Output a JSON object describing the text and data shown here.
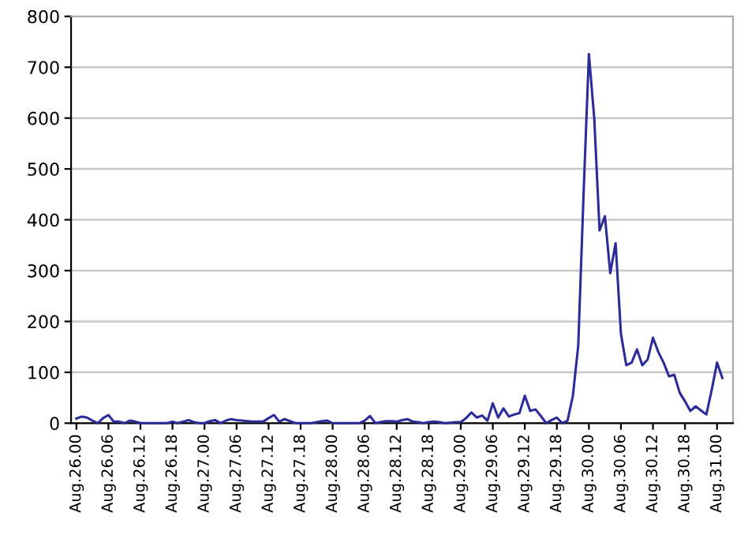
{
  "chart_data": {
    "type": "line",
    "grid": "y",
    "marker": "none",
    "line_style": "solid",
    "ylim": [
      0,
      800
    ],
    "yticks": [
      0,
      100,
      200,
      300,
      400,
      500,
      600,
      700,
      800
    ],
    "categories": [
      "Aug.26.00",
      null,
      null,
      null,
      null,
      null,
      "Aug.26.06",
      null,
      null,
      null,
      null,
      null,
      "Aug.26.12",
      null,
      null,
      null,
      null,
      null,
      "Aug.26.18",
      null,
      null,
      null,
      null,
      null,
      "Aug.27.00",
      null,
      null,
      null,
      null,
      null,
      "Aug.27.06",
      null,
      null,
      null,
      null,
      null,
      "Aug.27.12",
      null,
      null,
      null,
      null,
      null,
      "Aug.27.18",
      null,
      null,
      null,
      null,
      null,
      "Aug.28.00",
      null,
      null,
      null,
      null,
      null,
      "Aug.28.06",
      null,
      null,
      null,
      null,
      null,
      "Aug.28.12",
      null,
      null,
      null,
      null,
      null,
      "Aug.28.18",
      null,
      null,
      null,
      null,
      null,
      "Aug.29.00",
      null,
      null,
      null,
      null,
      null,
      "Aug.29.06",
      null,
      null,
      null,
      null,
      null,
      "Aug.29.12",
      null,
      null,
      null,
      null,
      null,
      "Aug.29.18",
      null,
      null,
      null,
      null,
      null,
      "Aug.30.00",
      null,
      null,
      null,
      null,
      null,
      "Aug.30.06",
      null,
      null,
      null,
      null,
      null,
      "Aug.30.12",
      null,
      null,
      null,
      null,
      null,
      "Aug.30.18",
      null,
      null,
      null,
      null,
      null,
      "Aug.31.00",
      null
    ],
    "series": [
      {
        "color": "#2b2b9a",
        "values": [
          9,
          13,
          11,
          5,
          0,
          10,
          16,
          3,
          3,
          0,
          5,
          3,
          0,
          0,
          0,
          0,
          0,
          0,
          3,
          0,
          3,
          6,
          2,
          0,
          0,
          4,
          6,
          0,
          5,
          8,
          6,
          5,
          4,
          3,
          3,
          3,
          10,
          16,
          3,
          8,
          4,
          0,
          0,
          0,
          0,
          2,
          4,
          5,
          0,
          0,
          0,
          0,
          0,
          0,
          5,
          14,
          0,
          2,
          4,
          4,
          3,
          6,
          8,
          3,
          2,
          0,
          2,
          3,
          2,
          0,
          1,
          2,
          2,
          10,
          21,
          11,
          15,
          5,
          39,
          11,
          29,
          13,
          17,
          20,
          54,
          24,
          27,
          14,
          0,
          6,
          11,
          0,
          5,
          54,
          152,
          450,
          726,
          600,
          379,
          407,
          295,
          354,
          176,
          114,
          119,
          145,
          114,
          125,
          168,
          140,
          119,
          92,
          95,
          60,
          43,
          24,
          33,
          25,
          17,
          65,
          119,
          89
        ]
      }
    ]
  }
}
